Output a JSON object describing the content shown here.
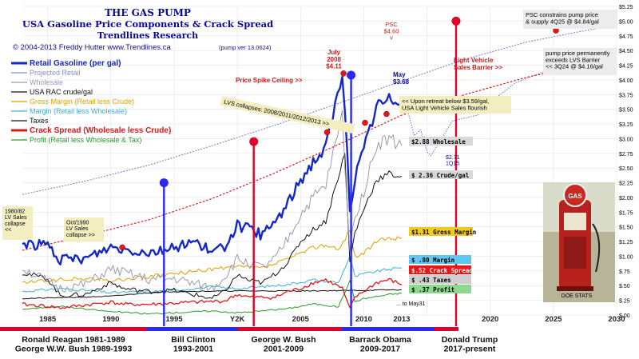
{
  "header": {
    "title": "THE GAS PUMP",
    "subtitle": "USA Gasoline Price Components & Crack Spread",
    "org": "Trendlines Research",
    "credit": "© 2004-2013   Freddy Hutter   www.Trendlines.ca",
    "version": "(pump ver 13.0624)"
  },
  "chart_data": {
    "type": "line",
    "x_range": [
      1983,
      2030
    ],
    "y_range": [
      0,
      5.25
    ],
    "grid": true,
    "x_ticks": [
      "1985",
      "1990",
      "1995",
      "Y2K",
      "2005",
      "2010",
      "2013",
      "2020",
      "2025",
      "2030"
    ],
    "y_ticks": [
      "$.00",
      "$.25",
      "$.50",
      "$.75",
      "$1.00",
      "$1.25",
      "$1.50",
      "$1.75",
      "$2.00",
      "$2.25",
      "$2.50",
      "$2.75",
      "$3.00",
      "$3.25",
      "$3.50",
      "$3.75",
      "$4.00",
      "$4.25",
      "$4.50",
      "$4.75",
      "$5.00",
      "$5.25"
    ],
    "legend": [
      {
        "name": "Retail Gasoline  (per gal)",
        "color": "#1428c8"
      },
      {
        "name": "Projected Retail",
        "color": "#8a8ad0"
      },
      {
        "name": "Wholesale",
        "color": "#9a9ab0"
      },
      {
        "name": "USA RAC crude/gal",
        "color": "#111111"
      },
      {
        "name": "Gross Margin  (Retail less Crude)",
        "color": "#e0a000"
      },
      {
        "name": "Margin  (Retail less Wholesale)",
        "color": "#3ab0d8"
      },
      {
        "name": "Taxes",
        "color": "#111111"
      },
      {
        "name": "Crack Spread  (Wholesale less Crude)",
        "color": "#e01818"
      },
      {
        "name": "Profit  (Retail less Wholesale & Tax)",
        "color": "#2a9a2a"
      }
    ],
    "series": [
      {
        "key": "retail",
        "x": [
          1983,
          1984,
          1985,
          1986,
          1987,
          1988,
          1990,
          1991,
          1993,
          1995,
          1996,
          1997,
          1998,
          1999,
          2000,
          2001,
          2002,
          2003,
          2004,
          2005,
          2006,
          2007,
          2008.3,
          2008.5,
          2008.9,
          2009.3,
          2010,
          2011,
          2012,
          2013
        ],
        "y": [
          1.22,
          1.2,
          1.19,
          0.93,
          0.95,
          0.96,
          1.16,
          1.12,
          1.07,
          1.14,
          1.24,
          1.22,
          1.05,
          1.17,
          1.52,
          1.45,
          1.36,
          1.59,
          1.89,
          2.3,
          2.61,
          2.84,
          4.11,
          3.6,
          1.7,
          2.35,
          2.8,
          3.55,
          3.65,
          3.68
        ]
      },
      {
        "key": "wholesale",
        "x": [
          1983,
          1986,
          1988,
          1990,
          1993,
          1995,
          1998,
          1999,
          2000,
          2001,
          2002,
          2003,
          2004,
          2005,
          2006,
          2007,
          2008.3,
          2008.9,
          2009.3,
          2010,
          2011,
          2012,
          2013
        ],
        "y": [
          0.8,
          0.45,
          0.52,
          0.78,
          0.6,
          0.62,
          0.45,
          0.65,
          0.95,
          0.88,
          0.8,
          0.95,
          1.3,
          1.7,
          2.0,
          2.2,
          3.4,
          1.1,
          1.7,
          2.1,
          2.9,
          3.0,
          2.88
        ]
      },
      {
        "key": "crude",
        "x": [
          1983,
          1985,
          1986,
          1988,
          1990,
          1991,
          1993,
          1995,
          1998,
          1999,
          2000,
          2001,
          2002,
          2003,
          2004,
          2005,
          2006,
          2007,
          2008.5,
          2008.9,
          2009.3,
          2010,
          2011,
          2012,
          2013
        ],
        "y": [
          0.72,
          0.62,
          0.33,
          0.35,
          0.55,
          0.45,
          0.4,
          0.42,
          0.28,
          0.4,
          0.68,
          0.58,
          0.55,
          0.7,
          0.9,
          1.25,
          1.45,
          1.6,
          2.75,
          0.9,
          1.4,
          1.8,
          2.3,
          2.4,
          2.36
        ]
      },
      {
        "key": "gross_margin",
        "x": [
          1983,
          1986,
          1988,
          1990,
          1993,
          1995,
          1998,
          2000,
          2002,
          2004,
          2005,
          2006,
          2007,
          2008,
          2008.9,
          2009.3,
          2010,
          2011,
          2012,
          2013
        ],
        "y": [
          0.55,
          0.6,
          0.62,
          0.58,
          0.65,
          0.7,
          0.78,
          0.82,
          0.8,
          0.95,
          1.05,
          1.15,
          1.2,
          1.1,
          1.45,
          1.0,
          1.05,
          1.25,
          1.3,
          1.31
        ]
      },
      {
        "key": "margin",
        "x": [
          1983,
          1986,
          1988,
          1990,
          1993,
          1995,
          1998,
          2000,
          2002,
          2004,
          2006,
          2008,
          2008.9,
          2009.3,
          2010,
          2012,
          2013
        ],
        "y": [
          0.4,
          0.45,
          0.42,
          0.38,
          0.4,
          0.42,
          0.48,
          0.45,
          0.48,
          0.52,
          0.6,
          0.55,
          1.0,
          0.65,
          0.7,
          0.78,
          0.8
        ]
      },
      {
        "key": "taxes",
        "x": [
          1983,
          1987,
          1990,
          1993,
          1995,
          2000,
          2005,
          2010,
          2013
        ],
        "y": [
          0.28,
          0.3,
          0.32,
          0.38,
          0.4,
          0.41,
          0.41,
          0.42,
          0.43
        ]
      },
      {
        "key": "crack",
        "x": [
          1983,
          1985,
          1986,
          1988,
          1990,
          1991,
          1993,
          1995,
          1997,
          1999,
          2000,
          2001,
          2003,
          2004,
          2005,
          2006,
          2007,
          2008.3,
          2008.9,
          2009.3,
          2010,
          2011,
          2012,
          2013
        ],
        "y": [
          0.18,
          0.15,
          0.12,
          0.17,
          0.22,
          0.18,
          0.18,
          0.2,
          0.22,
          0.24,
          0.35,
          0.3,
          0.3,
          0.4,
          0.45,
          0.55,
          0.6,
          0.45,
          0.1,
          0.3,
          0.4,
          0.55,
          0.6,
          0.52
        ]
      },
      {
        "key": "profit",
        "x": [
          1983,
          1986,
          1988,
          1990,
          1993,
          1995,
          1998,
          2000,
          2002,
          2004,
          2006,
          2008,
          2008.9,
          2009.3,
          2010,
          2012,
          2013
        ],
        "y": [
          0.1,
          0.15,
          0.1,
          0.06,
          0.02,
          0.04,
          0.07,
          0.04,
          0.07,
          0.11,
          0.19,
          0.14,
          0.58,
          0.23,
          0.28,
          0.35,
          0.37
        ]
      },
      {
        "key": "projected_retail",
        "x": [
          1983,
          1988,
          1993,
          1998,
          2003,
          2008,
          2013,
          2018,
          2023,
          2028,
          2030
        ],
        "y": [
          2.05,
          2.28,
          2.55,
          2.88,
          3.23,
          3.6,
          3.98,
          4.35,
          4.65,
          4.86,
          4.92
        ]
      },
      {
        "key": "lvs_barrier",
        "x": [
          1983,
          1988,
          1993,
          1998,
          2003,
          2008,
          2013,
          2018,
          2023,
          2028,
          2030
        ],
        "y": [
          1.1,
          1.35,
          1.62,
          1.98,
          2.42,
          2.9,
          3.4,
          3.75,
          4.05,
          4.28,
          4.37
        ]
      }
    ],
    "projection_dotted": {
      "x": [
        2013,
        2013.5,
        2014,
        2014.5,
        2015,
        2015.3,
        2016,
        2017,
        2018,
        2019,
        2020,
        2022,
        2024.5
      ],
      "y": [
        3.65,
        3.45,
        3.05,
        3.15,
        2.78,
        2.71,
        2.95,
        3.3,
        3.35,
        3.4,
        3.62,
        3.95,
        4.16
      ]
    },
    "president_lines": [
      {
        "x": 1994.2,
        "y": 2.25,
        "color": "#2a2af0"
      },
      {
        "x": 2001.3,
        "y": 2.95,
        "color": "#e0002a"
      },
      {
        "x": 2009.0,
        "y": 4.08,
        "color": "#2a2af0"
      },
      {
        "x": 2017.3,
        "y": 5.0,
        "color": "#e0002a"
      }
    ],
    "key_points": [
      {
        "x": 1990.9,
        "y": 1.15,
        "color": "#e01818"
      },
      {
        "x": 2007.1,
        "y": 3.11,
        "color": "#e01818"
      },
      {
        "x": 2008.4,
        "y": 4.11,
        "color": "#e01818"
      },
      {
        "x": 2010.1,
        "y": 3.27,
        "color": "#e01818"
      },
      {
        "x": 2011.8,
        "y": 3.42,
        "color": "#e01818"
      },
      {
        "x": 2024.7,
        "y": 4.16,
        "color": "#e01818"
      },
      {
        "x": 2025.2,
        "y": 4.84,
        "color": "#e01818"
      }
    ],
    "annotations": {
      "lvs_1980": "1980/82\nLV Sales\ncollapse\n<<",
      "lvs_1990": "Oct/1990\nLV Sales\ncollapse >>",
      "july_2008": "July\n2008\n$4.11",
      "price_spike": "Price Spike Ceiling >>",
      "lvs_collapses": "LVS collapses:  2008/2011/2012/2013 >>",
      "psc": "PSC\n$4.60\nv",
      "lvs_barrier": "Light Vehicle\nSales Barrier >>",
      "may_price": "May\n$3.68",
      "upon_retreat": "<< Upon retreat below $3.59/gal,\nUSA Light Vehicle Sales flourish",
      "dip_2015": "$2.71\n1Q15",
      "psc_constrains": "PSC constrains pump price\n& supply 4Q25 @ $4.84/gal",
      "permanent_exceed": "pump price permanently\nexceeds LVS Barrier\n<< 3Q24 @ $4.16/gal",
      "to_may": "... to May31",
      "doe": "DOE STATS",
      "gas_sign": "GAS"
    },
    "value_labels": [
      {
        "text": "$2.88  Wholesale",
        "bg": "#d8d8d8",
        "fg": "#000000"
      },
      {
        "text": "$ 2.36  Crude/gal",
        "bg": "#d8d8d8",
        "fg": "#000000"
      },
      {
        "text": "$1.31  Gross Margin",
        "bg": "#f0cc20",
        "fg": "#000000"
      },
      {
        "text": "$ .80  Margin",
        "bg": "#60c8f0",
        "fg": "#000000"
      },
      {
        "text": "$.52  Crack Spread",
        "bg": "#e81818",
        "fg": "#ffffff"
      },
      {
        "text": "$ .43  Taxes",
        "bg": "#cfcfcf",
        "fg": "#000000"
      },
      {
        "text": "$ .37  Profit",
        "bg": "#8ed88e",
        "fg": "#000000"
      }
    ]
  },
  "presidents": [
    {
      "name": "Ronald Reagan 1981-1989\nGeorge W.W. Bush 1989-1993",
      "color": "#e0002a"
    },
    {
      "name": "Bill Clinton\n1993-2001",
      "color": "#2a2af0"
    },
    {
      "name": "George W. Bush\n2001-2009",
      "color": "#e0002a"
    },
    {
      "name": "Barrack Obama\n2009-2017",
      "color": "#2a2af0"
    },
    {
      "name": "Donald Trump\n2017-present",
      "color": "#e0002a"
    }
  ]
}
